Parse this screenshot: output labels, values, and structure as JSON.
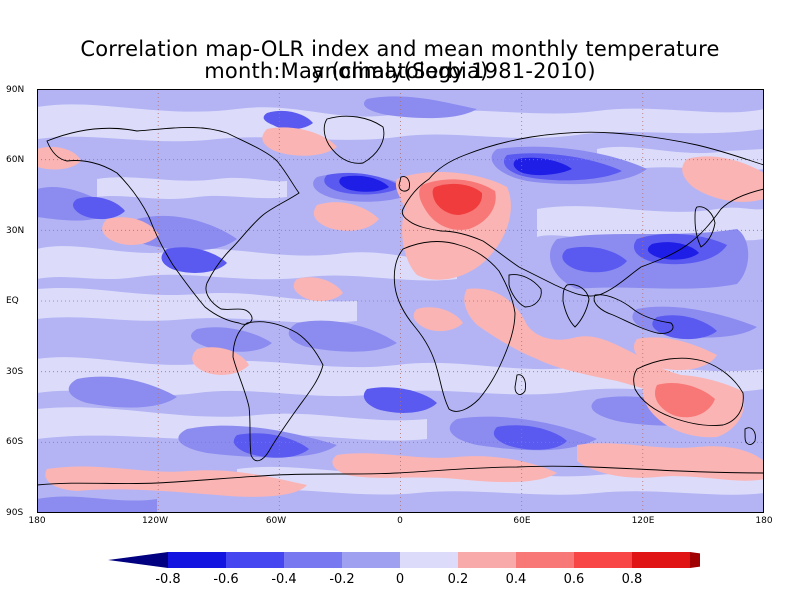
{
  "title": {
    "line1": "Correlation map-OLR index and mean monthly temperature anomaly(Serbia)",
    "line2": "month:May (climatology 1981-2010)"
  },
  "axes": {
    "y_ticks": [
      "90N",
      "60N",
      "30N",
      "EQ",
      "30S",
      "60S",
      "90S"
    ],
    "x_ticks": [
      "180",
      "120W",
      "60W",
      "0",
      "60E",
      "120E",
      "180"
    ]
  },
  "map_data": {
    "type": "filled-contour-map",
    "projection": "equirectangular",
    "lon_range": [
      -180,
      180
    ],
    "lat_range": [
      -90,
      90
    ],
    "gridlines": "dotted",
    "features": {
      "strongest_positive": "Eastern Europe / Black Sea region (~+0.6 to +0.8)",
      "strongest_negative": "North Atlantic south of Greenland and Siberia (~-0.6)"
    }
  },
  "colorbar": {
    "labels": [
      "-0.8",
      "-0.6",
      "-0.4",
      "-0.2",
      "0",
      "0.2",
      "0.4",
      "0.6",
      "0.8"
    ],
    "colors": [
      "#000080",
      "#1414e0",
      "#4646f0",
      "#7878f0",
      "#a0a0f0",
      "#dcdcfa",
      "#f8aaaa",
      "#f87878",
      "#f84646",
      "#e01414",
      "#a00000"
    ]
  },
  "colors": {
    "neg_strong": "#1e1ee6",
    "neg_mid": "#5a5af0",
    "neg_weak": "#8c8cf0",
    "neutral_neg": "#b4b4f5",
    "neutral_pos": "#dcdcfa",
    "pos_weak": "#fab4b4",
    "pos_mid": "#f87878",
    "pos_strong": "#f03c3c"
  }
}
